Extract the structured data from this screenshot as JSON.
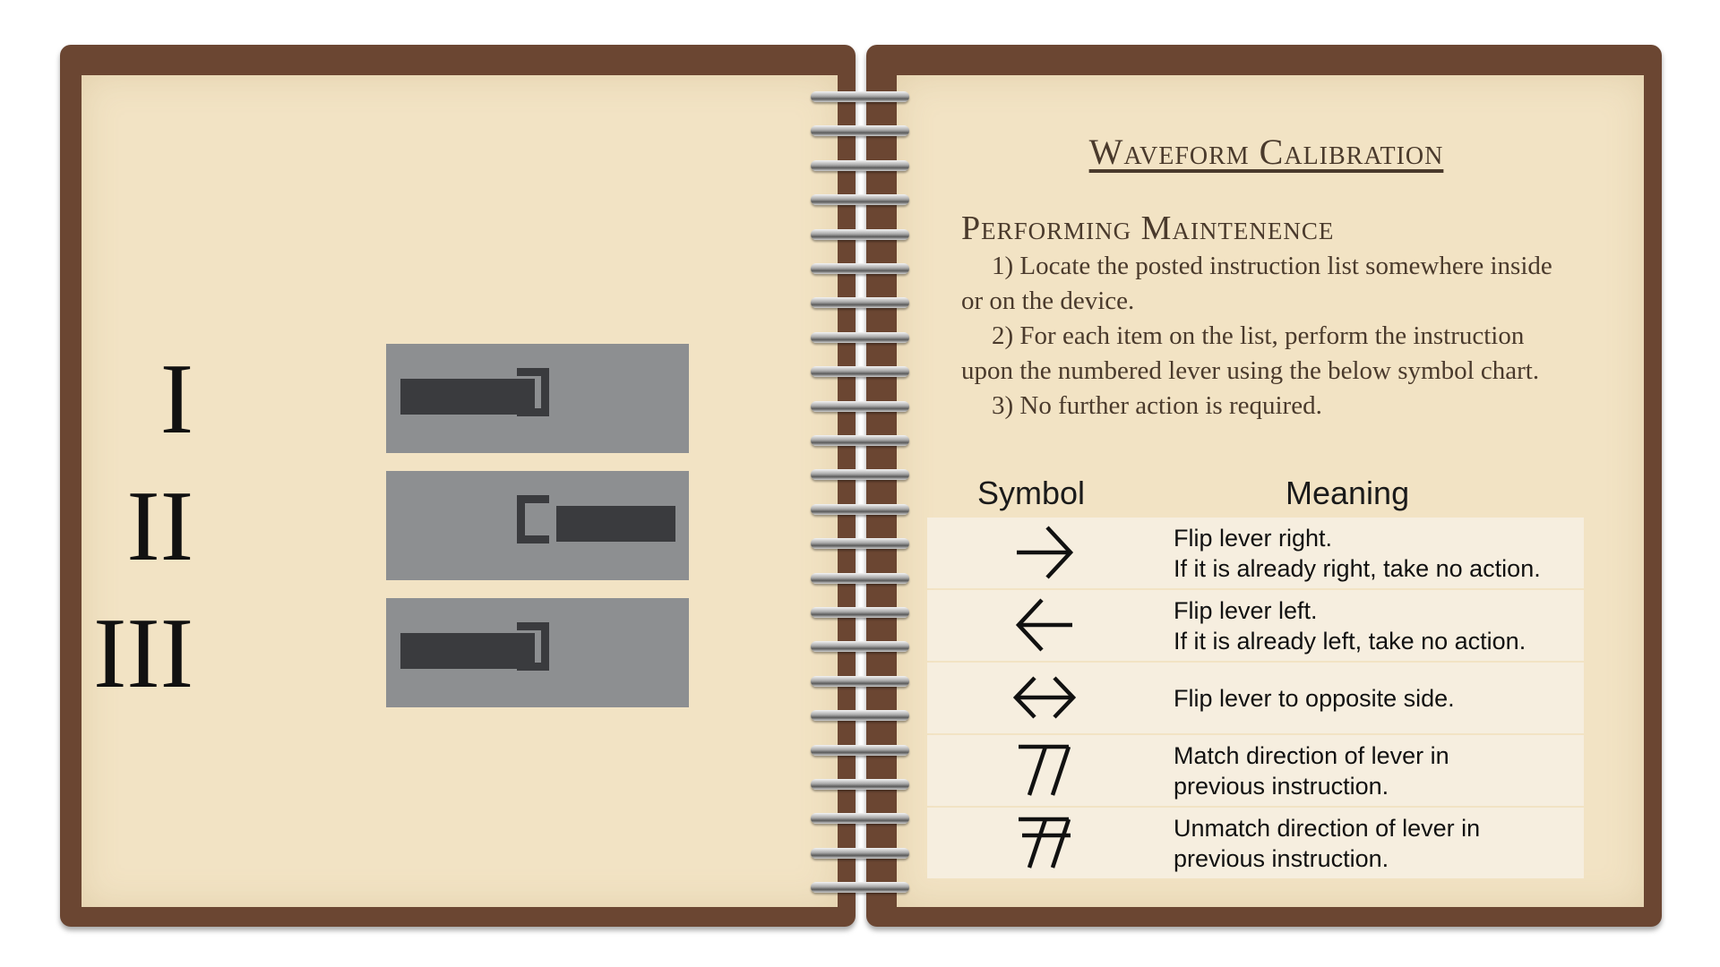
{
  "left_page": {
    "levers": [
      {
        "numeral": "I",
        "position": "left"
      },
      {
        "numeral": "II",
        "position": "right"
      },
      {
        "numeral": "III",
        "position": "left"
      }
    ]
  },
  "right_page": {
    "title": "Waveform Calibration",
    "section_heading": "Performing Maintenence",
    "instructions": [
      "1) Locate the posted instruction list somewhere inside or on the device.",
      "2) For each item on the list, perform the instruction upon the numbered lever using the below symbol chart.",
      "3) No further action is required."
    ],
    "table": {
      "header_symbol": "Symbol",
      "header_meaning": "Meaning",
      "rows": [
        {
          "symbol_icon": "arrow-right-icon",
          "line1": "Flip lever right.",
          "line2": "If it is already right, take no action."
        },
        {
          "symbol_icon": "arrow-left-icon",
          "line1": "Flip lever left.",
          "line2": "If it is already left, take no action."
        },
        {
          "symbol_icon": "double-arrow-icon",
          "line1": "Flip lever to opposite side.",
          "line2": ""
        },
        {
          "symbol_icon": "match-slashes-icon",
          "line1": "Match direction of lever in",
          "line2": "previous instruction."
        },
        {
          "symbol_icon": "unmatch-slashes-icon",
          "line1": "Unmatch direction of lever in",
          "line2": "previous instruction."
        }
      ]
    }
  },
  "colors": {
    "cover": "#6b4632",
    "paper": "#f2e3c4",
    "lever_box": "#8d8f91",
    "lever_handle": "#3a3b3e",
    "ink": "#4a3a2c"
  }
}
